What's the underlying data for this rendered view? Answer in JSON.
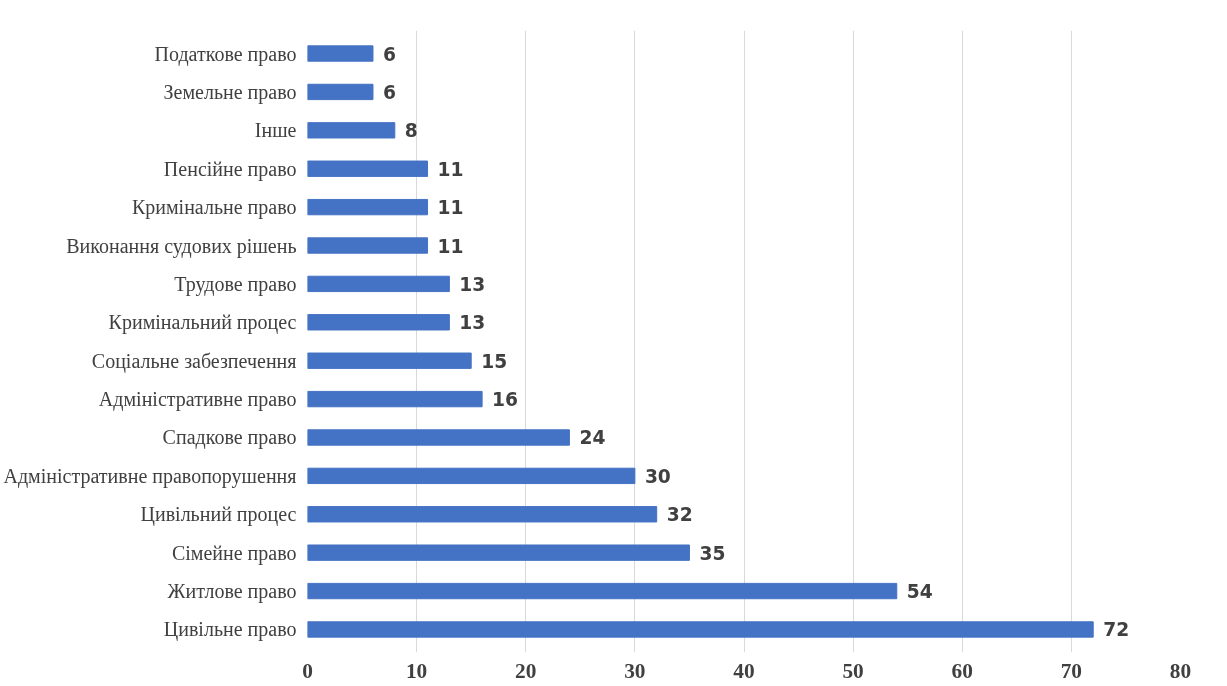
{
  "chart_data": {
    "type": "bar",
    "orientation": "horizontal",
    "categories": [
      "Податкове право",
      "Земельне право",
      "Інше",
      "Пенсійне право",
      "Кримінальне право",
      "Виконання судових рішень",
      "Трудове право",
      "Кримінальний процес",
      "Соціальне забезпечення",
      "Адміністративне право",
      "Спадкове право",
      "Адміністративне правопорушення",
      "Цивільний процес",
      "Сімейне право",
      "Житлове право",
      "Цивільне право"
    ],
    "values": [
      6,
      6,
      8,
      11,
      11,
      11,
      13,
      13,
      15,
      16,
      24,
      30,
      32,
      35,
      54,
      72
    ],
    "color": "#4472c4",
    "xlim": [
      0,
      80
    ],
    "xticks": [
      0,
      10,
      20,
      30,
      40,
      50,
      60,
      70,
      80
    ],
    "grid": "x",
    "data_labels": true
  }
}
